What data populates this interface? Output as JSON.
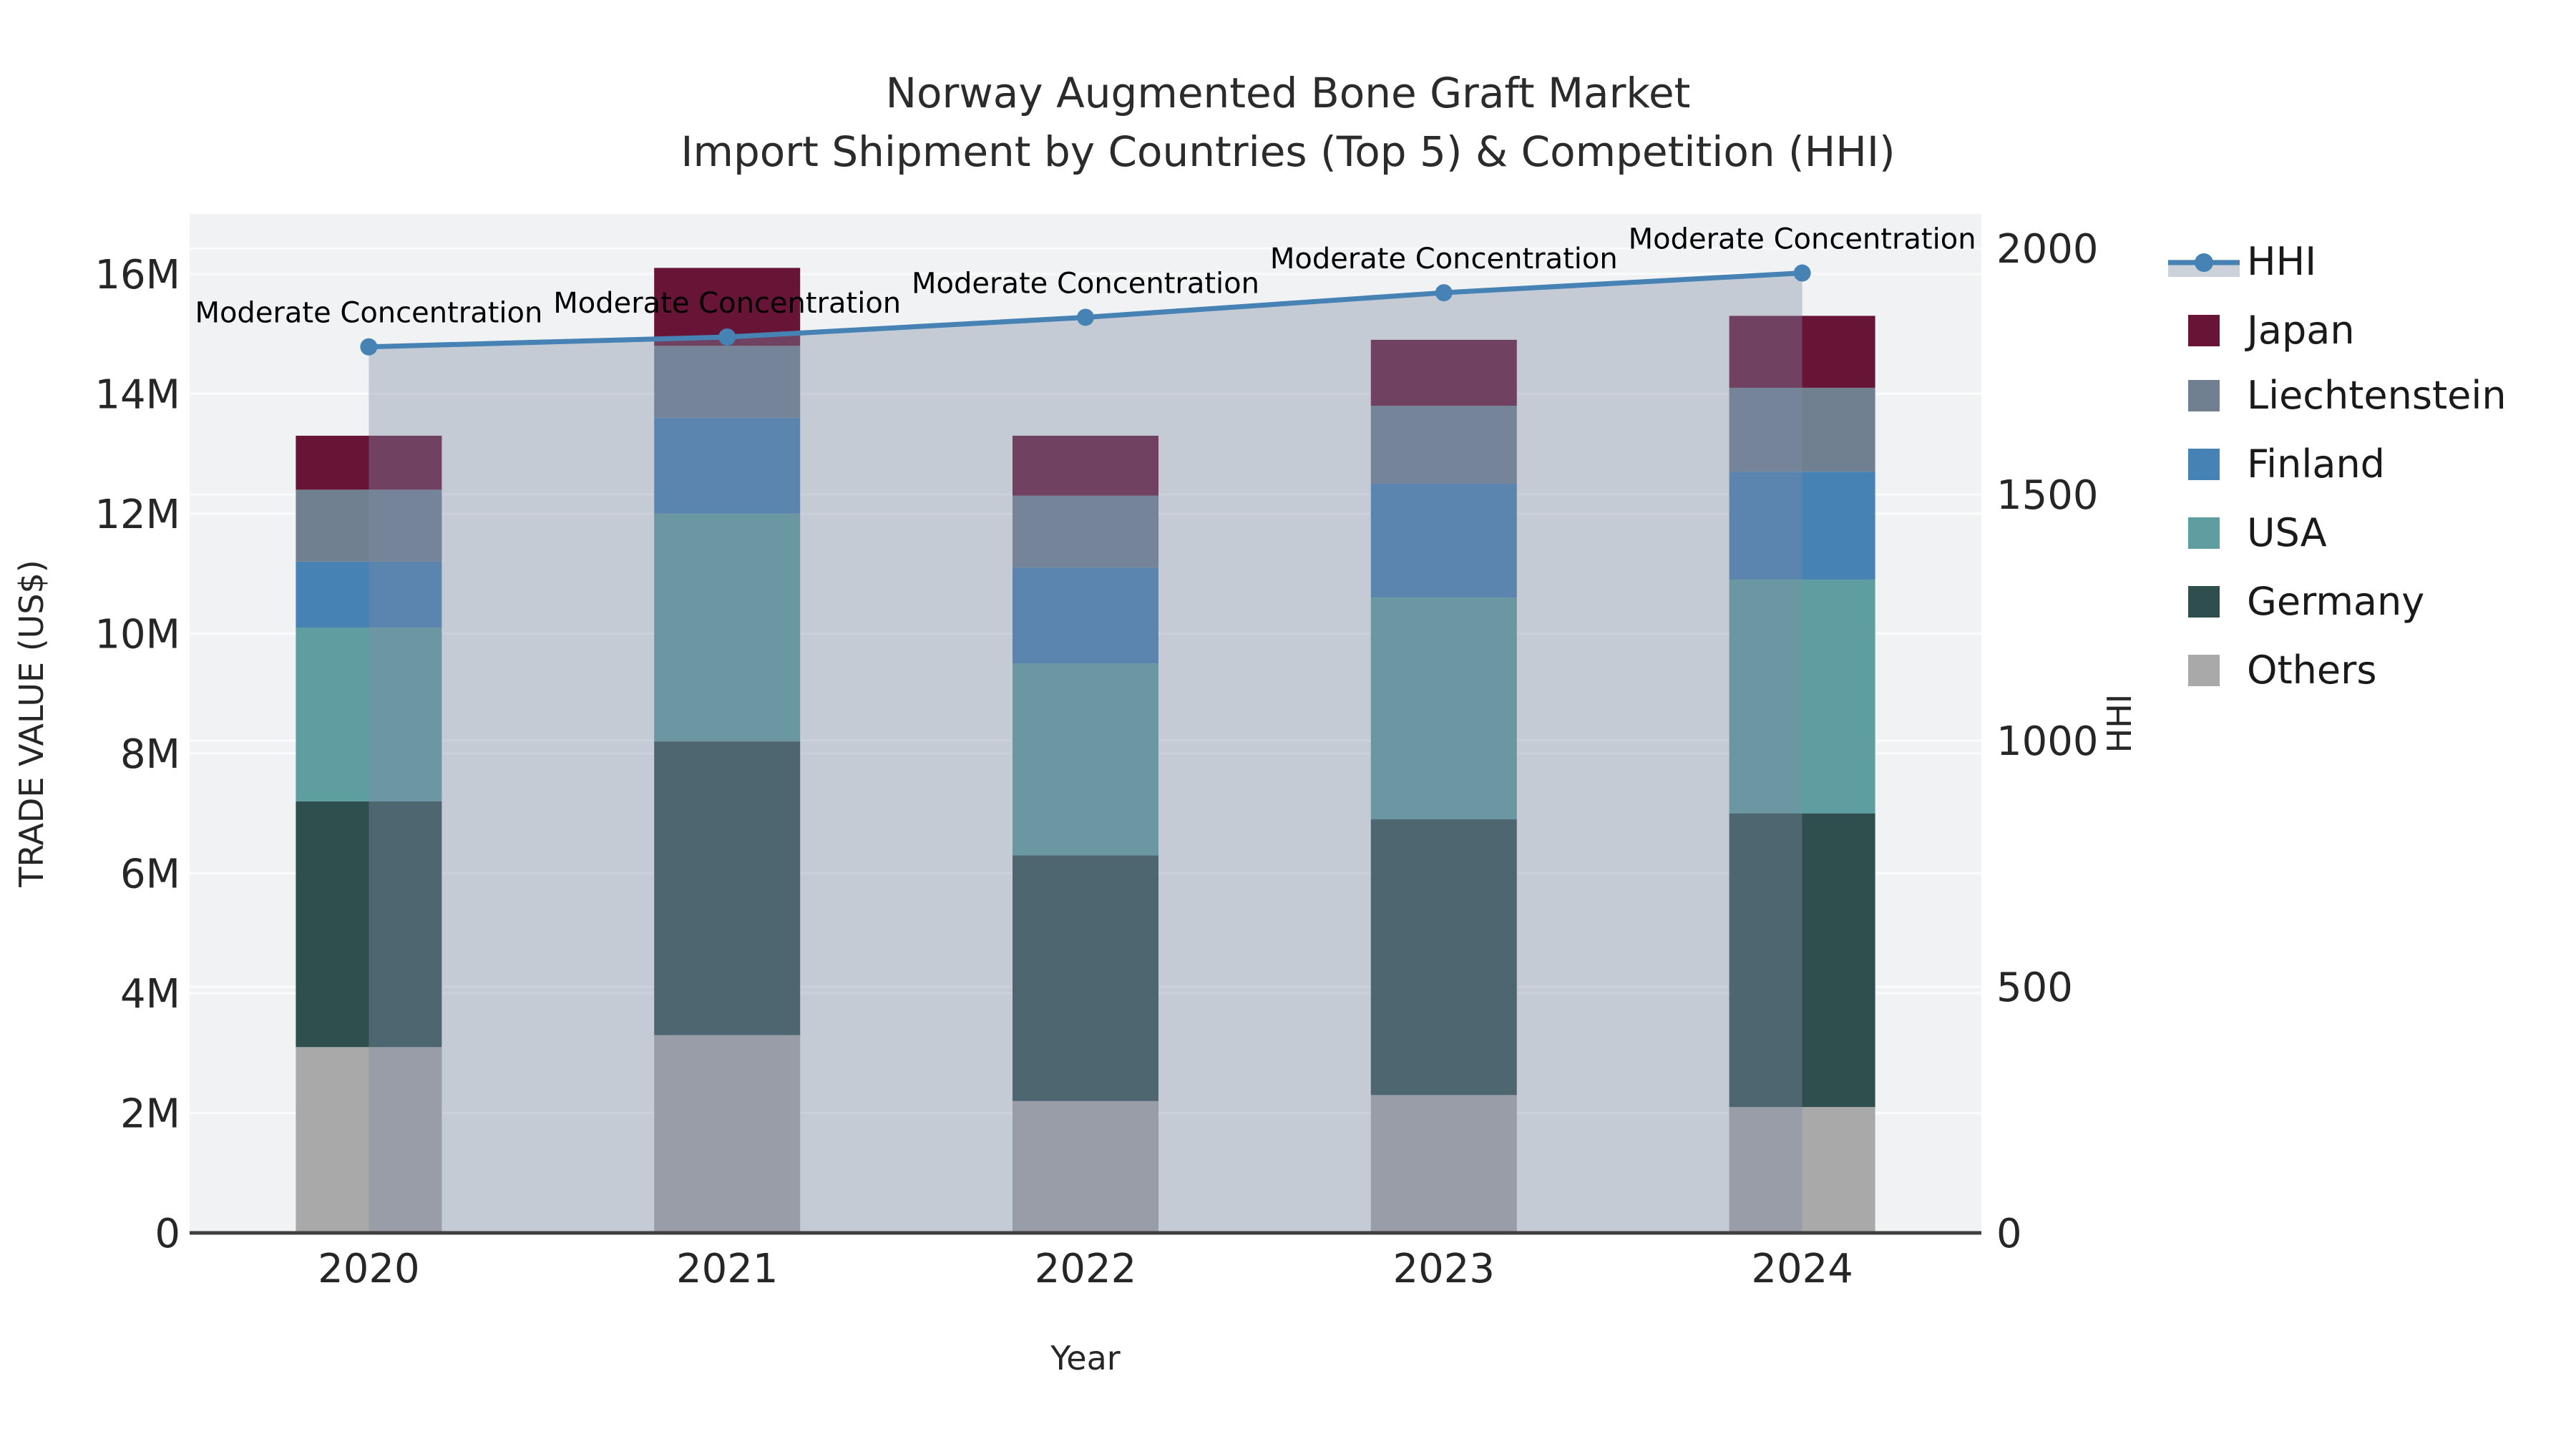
{
  "title": {
    "line1": "Norway Augmented Bone Graft Market",
    "line2": "Import Shipment by Countries (Top 5) & Competition (HHI)"
  },
  "axes": {
    "left": {
      "title": "TRADE VALUE (US$)",
      "tick_labels": [
        "0",
        "2M",
        "4M",
        "6M",
        "8M",
        "10M",
        "12M",
        "14M",
        "16M"
      ],
      "tick_values": [
        0,
        2,
        4,
        6,
        8,
        10,
        12,
        14,
        16
      ],
      "view_max": 17
    },
    "right": {
      "title": "HHI",
      "tick_labels": [
        "0",
        "500",
        "1000",
        "1500",
        "2000"
      ],
      "tick_values": [
        0,
        500,
        1000,
        1500,
        2000
      ],
      "view_max": 2070
    },
    "x": {
      "title": "Year",
      "categories": [
        "2020",
        "2021",
        "2022",
        "2023",
        "2024"
      ]
    }
  },
  "legend": {
    "position": "right",
    "labels": [
      "HHI",
      "Japan",
      "Liechtenstein",
      "Finland",
      "USA",
      "Germany",
      "Others"
    ]
  },
  "colors": {
    "plot_bg": "#f1f2f3",
    "gridline": "#fbfbfb",
    "spine": "#3f3f3f",
    "tick_text": "#262626",
    "annotation_text": "#000000",
    "hhi_line": "#4682b4",
    "hhi_area": "rgba(125,139,165,0.38)",
    "legend_area_swatch": "#ccd2da"
  },
  "chart_data": {
    "type": "combo: stacked-bar + line",
    "title": "Norway Augmented Bone Graft Market — Import Shipment by Countries (Top 5) & Competition (HHI)",
    "categories": [
      "2020",
      "2021",
      "2022",
      "2023",
      "2024"
    ],
    "xlabel": "Year",
    "ylabel_left": "TRADE VALUE (US$)",
    "ylabel_right": "HHI",
    "y_left_unit": "millions US$",
    "y_left_range": [
      0,
      17
    ],
    "y_right_range": [
      0,
      2070
    ],
    "grid": true,
    "legend_position": "right",
    "bar_series_bottom_to_top": [
      {
        "name": "Others",
        "color": "#a9a9a9",
        "values": [
          3.1,
          3.3,
          2.2,
          2.3,
          2.1
        ]
      },
      {
        "name": "Germany",
        "color": "#2f4f4f",
        "values": [
          4.1,
          4.9,
          4.1,
          4.6,
          4.9
        ]
      },
      {
        "name": "USA",
        "color": "#5f9ea0",
        "values": [
          2.9,
          3.8,
          3.2,
          3.7,
          3.9
        ]
      },
      {
        "name": "Finland",
        "color": "#4682b4",
        "values": [
          1.1,
          1.6,
          1.6,
          1.9,
          1.8
        ]
      },
      {
        "name": "Liechtenstein",
        "color": "#708090",
        "values": [
          1.2,
          1.2,
          1.2,
          1.3,
          1.4
        ]
      },
      {
        "name": "Japan",
        "color": "#681437",
        "values": [
          0.9,
          1.3,
          1.0,
          1.1,
          1.2
        ]
      }
    ],
    "bar_totals": [
      13.3,
      16.1,
      13.3,
      14.9,
      15.3
    ],
    "line_series": {
      "name": "HHI",
      "axis": "right",
      "color": "#4682b4",
      "values": [
        1800,
        1820,
        1860,
        1910,
        1950
      ],
      "area_fill": true,
      "point_labels": [
        "Moderate Concentration",
        "Moderate Concentration",
        "Moderate Concentration",
        "Moderate Concentration",
        "Moderate Concentration"
      ]
    }
  }
}
